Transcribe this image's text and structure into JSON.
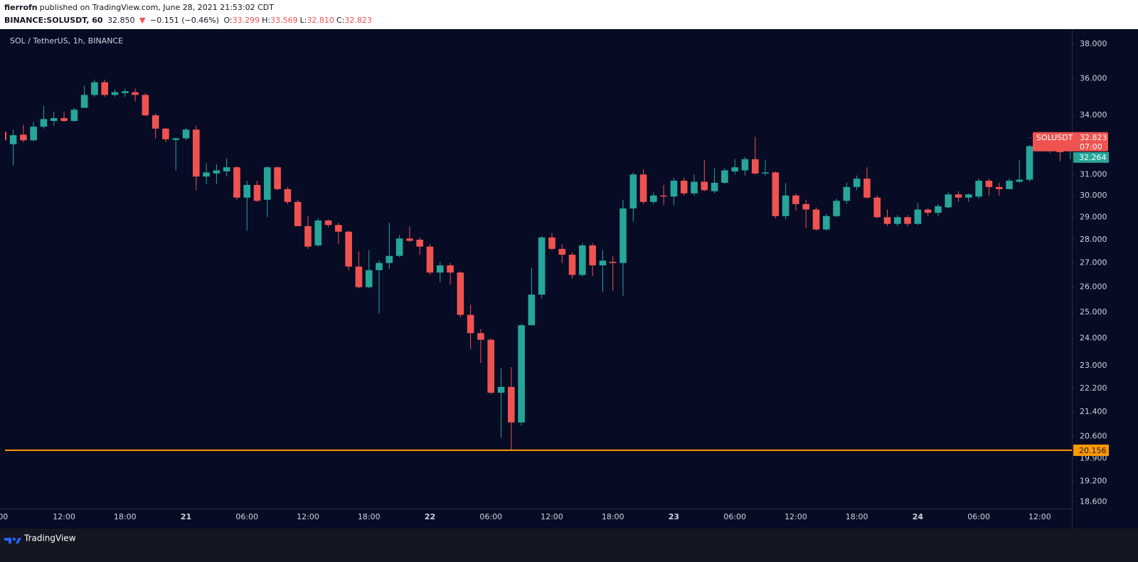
{
  "header": {
    "author": "fierrofn",
    "published": "published on TradingView.com, June 28, 2021 21:53:02 CDT",
    "symbol": "BINANCE:SOLUSDT, 60",
    "last": "32.850",
    "arrow": "▼",
    "change": "−0.151 (−0.46%)",
    "ohlc": [
      {
        "key": "O:",
        "value": "33.299"
      },
      {
        "key": "H:",
        "value": "33.569"
      },
      {
        "key": "L:",
        "value": "32.810"
      },
      {
        "key": "C:",
        "value": "32.823"
      }
    ]
  },
  "footer": {
    "brand": "TradingView"
  },
  "chart_data": {
    "type": "candlestick",
    "title": "SOL / TetherUS, 1h, BINANCE",
    "log_scale": true,
    "grid": false,
    "up_color": "#26a69a",
    "down_color": "#ef5350",
    "categories": [
      "00",
      null,
      null,
      null,
      null,
      null,
      "12:00",
      null,
      null,
      null,
      null,
      null,
      "18:00",
      null,
      null,
      null,
      null,
      null,
      "21",
      null,
      null,
      null,
      null,
      null,
      "06:00",
      null,
      null,
      null,
      null,
      null,
      "12:00",
      null,
      null,
      null,
      null,
      null,
      "18:00",
      null,
      null,
      null,
      null,
      null,
      "22",
      null,
      null,
      null,
      null,
      null,
      "06:00",
      null,
      null,
      null,
      null,
      null,
      "12:00",
      null,
      null,
      null,
      null,
      null,
      "18:00",
      null,
      null,
      null,
      null,
      null,
      "23",
      null,
      null,
      null,
      null,
      null,
      "06:00",
      null,
      null,
      null,
      null,
      null,
      "12:00",
      null,
      null,
      null,
      null,
      null,
      "18:00",
      null,
      null,
      null,
      null,
      null,
      "24",
      null,
      null,
      null,
      null,
      null,
      "06:00",
      null,
      null,
      null,
      null,
      null,
      "12:00",
      null,
      null,
      null
    ],
    "open": [
      33.14,
      32.5,
      32.99,
      32.7,
      33.4,
      33.7,
      33.85,
      33.7,
      34.4,
      35.1,
      35.8,
      35.1,
      35.2,
      35.25,
      35.1,
      34.0,
      33.3,
      32.72,
      32.8,
      33.25,
      30.9,
      31.05,
      31.15,
      31.35,
      29.9,
      30.5,
      29.8,
      31.35,
      30.3,
      29.7,
      28.6,
      27.75,
      28.85,
      28.65,
      28.35,
      26.85,
      26.0,
      26.7,
      27.0,
      27.3,
      28.05,
      28.0,
      27.7,
      26.6,
      26.9,
      26.6,
      24.9,
      24.2,
      23.95,
      22.05,
      22.25,
      21.05,
      24.5,
      25.7,
      28.1,
      27.6,
      27.35,
      26.5,
      27.75,
      26.9,
      27.05,
      27.0,
      29.4,
      31.0,
      29.7,
      30.0,
      29.95,
      30.7,
      30.1,
      30.65,
      30.2,
      30.6,
      31.15,
      31.2,
      31.75,
      31.05,
      31.1,
      29.05,
      30.0,
      29.6,
      29.35,
      28.45,
      29.05,
      29.75,
      30.4,
      30.8,
      29.9,
      29.0,
      28.7,
      29.0,
      28.7,
      29.35,
      29.2,
      29.45,
      30.05,
      29.9,
      29.95,
      30.7,
      30.4,
      30.3,
      30.65,
      30.75,
      32.4,
      32.6,
      32.25,
      32.2
    ],
    "high": [
      33.3,
      33.25,
      33.5,
      33.65,
      34.5,
      34.2,
      34.2,
      34.4,
      35.6,
      35.95,
      35.95,
      35.4,
      35.45,
      35.45,
      35.2,
      34.1,
      33.35,
      32.85,
      33.35,
      33.45,
      31.55,
      31.5,
      31.8,
      31.4,
      30.7,
      30.7,
      31.4,
      31.4,
      30.4,
      29.8,
      29.05,
      28.95,
      28.9,
      28.75,
      28.4,
      27.5,
      27.55,
      27.1,
      28.75,
      28.2,
      28.6,
      28.1,
      27.8,
      27.05,
      27.0,
      26.65,
      25.3,
      24.35,
      24.0,
      22.9,
      22.95,
      24.55,
      26.8,
      28.15,
      28.3,
      27.8,
      27.45,
      27.85,
      27.85,
      27.55,
      27.3,
      29.8,
      31.1,
      31.25,
      30.15,
      30.5,
      30.85,
      30.85,
      31.0,
      31.7,
      31.3,
      31.3,
      31.75,
      31.85,
      32.88,
      31.7,
      31.15,
      30.6,
      30.1,
      29.8,
      29.45,
      29.15,
      29.85,
      30.6,
      30.95,
      31.35,
      30.0,
      29.35,
      29.1,
      29.1,
      29.65,
      29.4,
      29.6,
      30.15,
      30.2,
      30.1,
      30.8,
      30.8,
      30.6,
      30.8,
      31.7,
      32.45,
      33.05,
      32.8,
      32.35,
      32.6
    ],
    "low": [
      32.6,
      31.45,
      32.6,
      32.65,
      33.3,
      33.45,
      33.65,
      33.65,
      34.4,
      35.0,
      35.0,
      35.0,
      35.0,
      34.75,
      33.95,
      32.8,
      32.6,
      31.2,
      32.7,
      30.25,
      30.55,
      30.55,
      30.9,
      29.8,
      28.4,
      29.7,
      29.0,
      30.25,
      29.6,
      28.6,
      27.6,
      27.7,
      28.55,
      27.8,
      26.7,
      25.95,
      25.95,
      24.95,
      26.75,
      27.25,
      27.9,
      27.35,
      26.5,
      26.2,
      26.1,
      24.8,
      23.6,
      23.1,
      22.0,
      20.55,
      20.156,
      20.95,
      24.5,
      25.55,
      27.55,
      27.0,
      26.35,
      26.45,
      26.45,
      25.8,
      25.85,
      25.65,
      28.8,
      29.6,
      29.6,
      29.55,
      29.55,
      30.0,
      30.0,
      30.2,
      30.1,
      30.55,
      31.0,
      30.95,
      31.0,
      30.95,
      28.95,
      28.9,
      29.3,
      28.5,
      28.4,
      28.4,
      29.0,
      29.6,
      30.25,
      29.85,
      28.95,
      28.6,
      28.6,
      28.6,
      28.65,
      29.05,
      29.05,
      29.4,
      29.7,
      29.7,
      29.85,
      30.0,
      30.0,
      30.3,
      30.6,
      30.65,
      32.35,
      32.05,
      31.65,
      31.75
    ],
    "close": [
      32.7,
      32.96,
      32.7,
      33.4,
      33.8,
      33.85,
      33.7,
      34.3,
      35.1,
      35.8,
      35.1,
      35.25,
      35.3,
      35.1,
      34.0,
      33.3,
      32.75,
      32.8,
      33.25,
      30.9,
      31.1,
      31.2,
      31.35,
      29.9,
      30.5,
      29.75,
      31.35,
      30.3,
      29.7,
      28.6,
      27.7,
      28.85,
      28.65,
      28.35,
      26.85,
      26.0,
      26.7,
      27.0,
      27.3,
      28.05,
      27.95,
      27.7,
      26.6,
      26.9,
      26.6,
      24.9,
      24.2,
      23.95,
      22.05,
      22.25,
      21.05,
      24.5,
      25.7,
      28.1,
      27.6,
      27.35,
      26.5,
      27.75,
      26.9,
      27.1,
      27.0,
      29.4,
      31.0,
      29.7,
      30.0,
      29.95,
      30.7,
      30.1,
      30.65,
      30.25,
      30.6,
      31.2,
      31.35,
      31.75,
      31.05,
      31.1,
      29.05,
      30.0,
      29.6,
      29.35,
      28.45,
      29.05,
      29.75,
      30.4,
      30.8,
      29.9,
      29.0,
      28.7,
      29.0,
      28.7,
      29.35,
      29.2,
      29.5,
      30.05,
      29.9,
      30.05,
      30.7,
      30.4,
      30.3,
      30.7,
      30.75,
      32.4,
      32.6,
      32.25,
      32.1,
      32.3
    ],
    "ylim": [
      18.4,
      38.85
    ],
    "yticks": [
      {
        "value": 38,
        "label": "38.000"
      },
      {
        "value": 36,
        "label": "36.000"
      },
      {
        "value": 34,
        "label": "34.000"
      },
      {
        "value": 31,
        "label": "31.000"
      },
      {
        "value": 30,
        "label": "30.000"
      },
      {
        "value": 29,
        "label": "29.000"
      },
      {
        "value": 28,
        "label": "28.000"
      },
      {
        "value": 27,
        "label": "27.000"
      },
      {
        "value": 26,
        "label": "26.000"
      },
      {
        "value": 25,
        "label": "25.000"
      },
      {
        "value": 24,
        "label": "24.000"
      },
      {
        "value": 23,
        "label": "23.000"
      },
      {
        "value": 22.2,
        "label": "22.200"
      },
      {
        "value": 21.4,
        "label": "21.400"
      },
      {
        "value": 20.6,
        "label": "20.600"
      },
      {
        "value": 19.9,
        "label": "19.900"
      },
      {
        "value": 19.2,
        "label": "19.200"
      },
      {
        "value": 18.6,
        "label": "18.600"
      }
    ],
    "last_price": {
      "name": "SOLUSDT",
      "value": 32.823,
      "countdown": "07:00",
      "color": "#ef5350"
    },
    "mark_price": {
      "value": 32.264,
      "color": "#26a69a"
    },
    "hline": {
      "value": 20.156,
      "color": "#ff9800"
    }
  }
}
